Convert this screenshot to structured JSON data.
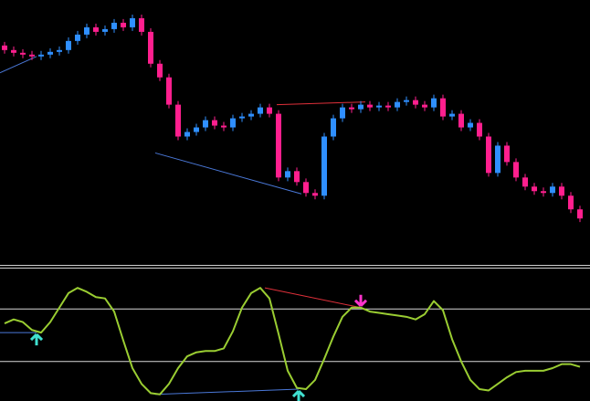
{
  "chart_data": [
    {
      "type": "candlestick",
      "xlim": [
        -0.5,
        64.1
      ],
      "ylim": [
        0,
        290
      ],
      "up_color": "#2f8fff",
      "down_color": "#ff1f8e",
      "open": [
        240,
        235,
        232,
        230,
        228,
        230,
        233,
        235,
        245,
        252,
        260,
        255,
        258,
        265,
        260,
        270,
        255,
        220,
        205,
        175,
        140,
        145,
        150,
        158,
        152,
        150,
        160,
        162,
        165,
        172,
        165,
        95,
        102,
        90,
        78,
        75,
        140,
        160,
        172,
        170,
        175,
        172,
        174,
        172,
        178,
        180,
        175,
        172,
        182,
        162,
        165,
        150,
        155,
        140,
        100,
        130,
        112,
        95,
        85,
        80,
        78,
        85,
        75,
        60
      ],
      "high": [
        244,
        239,
        236,
        234,
        234,
        237,
        239,
        249,
        256,
        264,
        264,
        262,
        269,
        269,
        274,
        274,
        259,
        224,
        209,
        179,
        149,
        154,
        162,
        162,
        156,
        164,
        166,
        169,
        176,
        176,
        169,
        106,
        106,
        94,
        82,
        144,
        164,
        176,
        176,
        179,
        179,
        178,
        178,
        182,
        184,
        184,
        179,
        186,
        186,
        169,
        169,
        159,
        159,
        144,
        134,
        134,
        116,
        99,
        89,
        84,
        89,
        89,
        79,
        64
      ],
      "low": [
        231,
        228,
        226,
        224,
        224,
        226,
        229,
        231,
        241,
        248,
        251,
        251,
        254,
        256,
        256,
        251,
        216,
        201,
        171,
        136,
        136,
        141,
        146,
        148,
        146,
        146,
        156,
        158,
        161,
        161,
        91,
        91,
        86,
        74,
        71,
        71,
        136,
        156,
        166,
        166,
        168,
        168,
        168,
        168,
        174,
        171,
        168,
        168,
        158,
        158,
        146,
        146,
        136,
        96,
        96,
        108,
        91,
        81,
        76,
        74,
        74,
        71,
        56,
        46
      ],
      "close": [
        235,
        232,
        230,
        228,
        230,
        233,
        235,
        245,
        252,
        260,
        255,
        258,
        265,
        260,
        270,
        255,
        220,
        205,
        175,
        140,
        145,
        150,
        158,
        152,
        150,
        160,
        162,
        165,
        172,
        165,
        95,
        102,
        90,
        78,
        75,
        140,
        160,
        172,
        170,
        175,
        172,
        174,
        172,
        178,
        180,
        175,
        172,
        182,
        162,
        165,
        150,
        155,
        140,
        100,
        130,
        112,
        95,
        85,
        80,
        78,
        85,
        75,
        60,
        50
      ],
      "lines": [
        {
          "color": "#4a78d8",
          "x": [
            -0.5,
            3.5
          ],
          "y": [
            210,
            228
          ]
        },
        {
          "color": "#4a78d8",
          "x": [
            16.5,
            32.5
          ],
          "y": [
            122,
            77
          ]
        },
        {
          "color": "#e0303a",
          "x": [
            29.8,
            39.5
          ],
          "y": [
            175,
            178
          ]
        }
      ]
    },
    {
      "type": "line",
      "xlim": [
        -0.5,
        64.1
      ],
      "ylim": [
        0,
        100
      ],
      "color": "#9acd32",
      "levels": [
        30,
        70
      ],
      "level_color": "#d8d8d8",
      "values": [
        59,
        62,
        60,
        54,
        52,
        60,
        71,
        82,
        86,
        83,
        79,
        78,
        68,
        46,
        25,
        13,
        6,
        5,
        13,
        25,
        34,
        37,
        38,
        38,
        40,
        53,
        71,
        82,
        86,
        78,
        51,
        23,
        10,
        9,
        16,
        32,
        49,
        64,
        71,
        71,
        68,
        67,
        66,
        65,
        64,
        62,
        66,
        76,
        69,
        47,
        30,
        16,
        9,
        8,
        13,
        18,
        22,
        23,
        23,
        23,
        25,
        28,
        28,
        26
      ],
      "lines": [
        {
          "color": "#4a78d8",
          "x": [
            -0.5,
            3.5
          ],
          "y": [
            52,
            52
          ]
        },
        {
          "color": "#4a78d8",
          "x": [
            16.5,
            32.2
          ],
          "y": [
            5,
            9
          ]
        },
        {
          "color": "#e0303a",
          "x": [
            28.5,
            39.0
          ],
          "y": [
            86,
            71
          ]
        }
      ],
      "signals": [
        {
          "color": "#40e0d0",
          "dir": "up",
          "x": 3.5,
          "y": 52
        },
        {
          "color": "#40e0d0",
          "dir": "up",
          "x": 32.2,
          "y": 9
        },
        {
          "color": "#ff33cc",
          "dir": "down",
          "x": 39.0,
          "y": 71
        }
      ]
    }
  ]
}
